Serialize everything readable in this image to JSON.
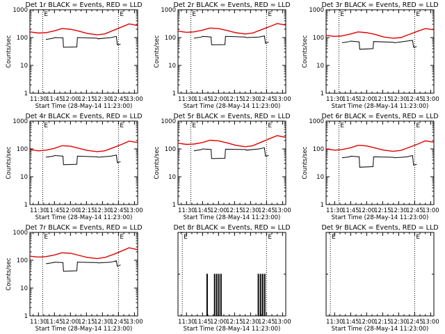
{
  "colors": {
    "events": "#000000",
    "lld": "#e00000",
    "background": "#ffffff"
  },
  "chart_data": [
    {
      "type": "line",
      "title": "Det 1r BLACK = Events, RED = LLD",
      "xlabel": "Start Time (28-May-14 11:23:00)",
      "ylabel": "Counts/sec",
      "x_tick_labels": [
        "11:30",
        "11:45",
        "12:00",
        "12:15",
        "12:30",
        "12:45",
        "13:00"
      ],
      "x_tick_minutes": [
        690,
        705,
        720,
        735,
        750,
        765,
        780
      ],
      "xlim_minutes": [
        682,
        783
      ],
      "y_tick_labels": [
        "1",
        "10",
        "100",
        "1000"
      ],
      "ylim": [
        1,
        1000
      ],
      "yscale": "log",
      "markers": [
        {
          "label": "E",
          "minutes": [
            694,
            765
          ]
        }
      ],
      "series": [
        {
          "name": "BLACK = Events",
          "color": "#000000",
          "x": [
            697,
            704,
            705,
            713,
            713.5,
            726,
            726.5,
            745,
            746,
            758,
            763,
            764,
            767
          ],
          "y": [
            85,
            95,
            100,
            98,
            45,
            46,
            100,
            95,
            90,
            100,
            110,
            55,
            58
          ]
        },
        {
          "name": "RED = LLD",
          "color": "#e00000",
          "x": [
            682,
            690,
            697,
            705,
            712,
            720,
            728,
            736,
            745,
            752,
            760,
            768,
            775,
            783
          ],
          "y": [
            160,
            145,
            150,
            175,
            210,
            200,
            170,
            140,
            125,
            135,
            180,
            240,
            310,
            270
          ]
        }
      ]
    },
    {
      "type": "line",
      "title": "Det 2r BLACK = Events, RED = LLD",
      "xlabel": "Start Time (28-May-14 11:23:00)",
      "ylabel": "Counts/sec",
      "x_tick_labels": [
        "11:30",
        "11:45",
        "12:00",
        "12:15",
        "12:30",
        "12:45",
        "13:00"
      ],
      "x_tick_minutes": [
        690,
        705,
        720,
        735,
        750,
        765,
        780
      ],
      "xlim_minutes": [
        682,
        783
      ],
      "y_tick_labels": [
        "1",
        "10",
        "100",
        "1000"
      ],
      "ylim": [
        1,
        1000
      ],
      "yscale": "log",
      "markers": [
        {
          "label": "E",
          "minutes": [
            694,
            765
          ]
        }
      ],
      "series": [
        {
          "name": "BLACK = Events",
          "color": "#000000",
          "x": [
            697,
            704,
            705,
            713,
            713.5,
            726,
            726.5,
            745,
            746,
            758,
            763,
            764,
            767
          ],
          "y": [
            95,
            105,
            110,
            105,
            55,
            56,
            110,
            105,
            100,
            105,
            115,
            62,
            70
          ]
        },
        {
          "name": "RED = LLD",
          "color": "#e00000",
          "x": [
            682,
            690,
            697,
            705,
            712,
            720,
            728,
            736,
            745,
            752,
            760,
            768,
            775,
            783
          ],
          "y": [
            170,
            155,
            160,
            185,
            220,
            210,
            180,
            150,
            135,
            145,
            190,
            250,
            320,
            280
          ]
        }
      ]
    },
    {
      "type": "line",
      "title": "Det 3r BLACK = Events, RED = LLD",
      "xlabel": "Start Time (28-May-14 11:23:00)",
      "ylabel": "Counts/sec",
      "x_tick_labels": [
        "11:30",
        "11:45",
        "12:00",
        "12:15",
        "12:30",
        "12:45",
        "13:00"
      ],
      "x_tick_minutes": [
        690,
        705,
        720,
        735,
        750,
        765,
        780
      ],
      "xlim_minutes": [
        682,
        783
      ],
      "y_tick_labels": [
        "1",
        "10",
        "100",
        "1000"
      ],
      "ylim": [
        1,
        1000
      ],
      "yscale": "log",
      "markers": [
        {
          "label": "E",
          "minutes": [
            694,
            765
          ]
        }
      ],
      "series": [
        {
          "name": "BLACK = Events",
          "color": "#000000",
          "x": [
            697,
            704,
            705,
            713,
            713.5,
            726,
            726.5,
            745,
            746,
            758,
            763,
            764,
            767
          ],
          "y": [
            65,
            72,
            75,
            70,
            38,
            40,
            72,
            68,
            65,
            75,
            80,
            45,
            48
          ]
        },
        {
          "name": "RED = LLD",
          "color": "#e00000",
          "x": [
            682,
            690,
            697,
            705,
            712,
            720,
            728,
            736,
            745,
            752,
            760,
            768,
            775,
            783
          ],
          "y": [
            120,
            110,
            115,
            135,
            160,
            150,
            130,
            105,
            95,
            100,
            130,
            170,
            210,
            190
          ]
        }
      ]
    },
    {
      "type": "line",
      "title": "Det 4r BLACK = Events, RED = LLD",
      "xlabel": "Start Time (28-May-14 11:23:00)",
      "ylabel": "Counts/sec",
      "x_tick_labels": [
        "11:30",
        "11:45",
        "12:00",
        "12:15",
        "12:30",
        "12:45",
        "13:00"
      ],
      "x_tick_minutes": [
        690,
        705,
        720,
        735,
        750,
        765,
        780
      ],
      "xlim_minutes": [
        682,
        783
      ],
      "y_tick_labels": [
        "1",
        "10",
        "100",
        "1000"
      ],
      "ylim": [
        1,
        1000
      ],
      "yscale": "log",
      "markers": [
        {
          "label": "E",
          "minutes": [
            694,
            765
          ]
        }
      ],
      "series": [
        {
          "name": "BLACK = Events",
          "color": "#000000",
          "x": [
            697,
            704,
            705,
            713,
            713.5,
            726,
            726.5,
            745,
            746,
            758,
            763,
            764,
            767
          ],
          "y": [
            50,
            55,
            58,
            55,
            27,
            28,
            55,
            52,
            50,
            55,
            60,
            32,
            35
          ]
        },
        {
          "name": "RED = LLD",
          "color": "#e00000",
          "x": [
            682,
            690,
            697,
            705,
            712,
            720,
            728,
            736,
            745,
            752,
            760,
            768,
            775,
            783
          ],
          "y": [
            95,
            85,
            90,
            105,
            130,
            125,
            105,
            88,
            80,
            85,
            110,
            145,
            190,
            170
          ]
        }
      ]
    },
    {
      "type": "line",
      "title": "Det 5r BLACK = Events, RED = LLD",
      "xlabel": "Start Time (28-May-14 11:23:00)",
      "ylabel": "Counts/sec",
      "x_tick_labels": [
        "11:30",
        "11:45",
        "12:00",
        "12:15",
        "12:30",
        "12:45",
        "13:00"
      ],
      "x_tick_minutes": [
        690,
        705,
        720,
        735,
        750,
        765,
        780
      ],
      "xlim_minutes": [
        682,
        783
      ],
      "y_tick_labels": [
        "1",
        "10",
        "100",
        "1000"
      ],
      "ylim": [
        1,
        1000
      ],
      "yscale": "log",
      "markers": [
        {
          "label": "E",
          "minutes": [
            694,
            765
          ]
        }
      ],
      "series": [
        {
          "name": "BLACK = Events",
          "color": "#000000",
          "x": [
            697,
            704,
            705,
            713,
            713.5,
            726,
            726.5,
            745,
            746,
            758,
            763,
            764,
            767
          ],
          "y": [
            85,
            95,
            100,
            95,
            45,
            46,
            98,
            95,
            90,
            100,
            110,
            55,
            58
          ]
        },
        {
          "name": "RED = LLD",
          "color": "#e00000",
          "x": [
            682,
            690,
            697,
            705,
            712,
            720,
            728,
            736,
            745,
            752,
            760,
            768,
            775,
            783
          ],
          "y": [
            160,
            145,
            150,
            170,
            205,
            195,
            165,
            135,
            120,
            130,
            175,
            235,
            300,
            260
          ]
        }
      ]
    },
    {
      "type": "line",
      "title": "Det 6r BLACK = Events, RED = LLD",
      "xlabel": "Start Time (28-May-14 11:23:00)",
      "ylabel": "Counts/sec",
      "x_tick_labels": [
        "11:30",
        "11:45",
        "12:00",
        "12:15",
        "12:30",
        "12:45",
        "13:00"
      ],
      "x_tick_minutes": [
        690,
        705,
        720,
        735,
        750,
        765,
        780
      ],
      "xlim_minutes": [
        682,
        783
      ],
      "y_tick_labels": [
        "1",
        "10",
        "100",
        "1000"
      ],
      "ylim": [
        1,
        1000
      ],
      "yscale": "log",
      "markers": [
        {
          "label": "E",
          "minutes": [
            694,
            765
          ]
        }
      ],
      "series": [
        {
          "name": "BLACK = Events",
          "color": "#000000",
          "x": [
            697,
            704,
            705,
            713,
            713.5,
            726,
            726.5,
            745,
            746,
            758,
            763,
            764,
            767
          ],
          "y": [
            48,
            52,
            55,
            52,
            22,
            23,
            52,
            50,
            48,
            52,
            58,
            26,
            28
          ]
        },
        {
          "name": "RED = LLD",
          "color": "#e00000",
          "x": [
            682,
            690,
            697,
            705,
            712,
            720,
            728,
            736,
            745,
            752,
            760,
            768,
            775,
            783
          ],
          "y": [
            100,
            90,
            95,
            110,
            135,
            128,
            108,
            90,
            82,
            88,
            115,
            150,
            195,
            175
          ]
        }
      ]
    },
    {
      "type": "line",
      "title": "Det 7r BLACK = Events, RED = LLD",
      "xlabel": "Start Time (28-May-14 11:23:00)",
      "ylabel": "Counts/sec",
      "x_tick_labels": [
        "11:30",
        "11:45",
        "12:00",
        "12:15",
        "12:30",
        "12:45",
        "13:00"
      ],
      "x_tick_minutes": [
        690,
        705,
        720,
        735,
        750,
        765,
        780
      ],
      "xlim_minutes": [
        682,
        783
      ],
      "y_tick_labels": [
        "1",
        "10",
        "100",
        "1000"
      ],
      "ylim": [
        1,
        1000
      ],
      "yscale": "log",
      "markers": [
        {
          "label": "E",
          "minutes": [
            694,
            765
          ]
        }
      ],
      "series": [
        {
          "name": "BLACK = Events",
          "color": "#000000",
          "x": [
            697,
            704,
            705,
            713,
            713.5,
            726,
            726.5,
            745,
            746,
            758,
            763,
            764,
            767
          ],
          "y": [
            75,
            82,
            85,
            82,
            40,
            42,
            85,
            82,
            80,
            85,
            95,
            60,
            68
          ]
        },
        {
          "name": "RED = LLD",
          "color": "#e00000",
          "x": [
            682,
            690,
            697,
            705,
            712,
            720,
            728,
            736,
            745,
            752,
            760,
            768,
            775,
            783
          ],
          "y": [
            140,
            130,
            135,
            155,
            185,
            178,
            150,
            125,
            115,
            125,
            160,
            215,
            280,
            240
          ]
        }
      ]
    },
    {
      "type": "line",
      "title": "Det 8r BLACK = Events, RED = LLD",
      "xlabel": "Start Time (28-May-14 11:23:00)",
      "ylabel": "",
      "x_tick_labels": [
        "11:30",
        "11:45",
        "12:00",
        "12:15",
        "12:30",
        "12:45",
        "13:00"
      ],
      "x_tick_minutes": [
        690,
        705,
        720,
        735,
        750,
        765,
        780
      ],
      "xlim_minutes": [
        682,
        783
      ],
      "y_tick_labels": [],
      "ylim": [
        1,
        4
      ],
      "yscale": "log",
      "markers": [
        {
          "label": "E",
          "minutes": [
            686,
            765
          ]
        }
      ],
      "series": [
        {
          "name": "BLACK = Events",
          "color": "#000000",
          "x": [
            682,
            709,
            709,
            709.6,
            709.6,
            716,
            716,
            716.6,
            716.6,
            718,
            718,
            718.6,
            718.6,
            720,
            720,
            720.6,
            720.6,
            722,
            722,
            722.6,
            722.6,
            757,
            757,
            757.6,
            757.6,
            759,
            759,
            759.6,
            759.6,
            761,
            761,
            761.6,
            761.6,
            763,
            763,
            763.6,
            763.6,
            783
          ],
          "y": [
            1,
            1,
            2,
            2,
            1,
            1,
            2,
            2,
            1,
            1,
            2,
            2,
            1,
            1,
            2,
            2,
            1,
            1,
            2,
            2,
            1,
            1,
            2,
            2,
            1,
            1,
            2,
            2,
            1,
            1,
            2,
            2,
            1,
            1,
            2,
            2,
            1,
            1
          ]
        }
      ]
    },
    {
      "type": "line",
      "title": "Det 9r BLACK = Events, RED = LLD",
      "xlabel": "Start Time (28-May-14 11:23:00)",
      "ylabel": "",
      "x_tick_labels": [
        "11:30",
        "11:45",
        "12:00",
        "12:15",
        "12:30",
        "12:45",
        "13:00"
      ],
      "x_tick_minutes": [
        690,
        705,
        720,
        735,
        750,
        765,
        780
      ],
      "xlim_minutes": [
        682,
        783
      ],
      "y_tick_labels": [],
      "ylim": [
        1,
        4
      ],
      "yscale": "log",
      "markers": [
        {
          "label": "E",
          "minutes": [
            686,
            765
          ]
        }
      ],
      "series": []
    }
  ]
}
